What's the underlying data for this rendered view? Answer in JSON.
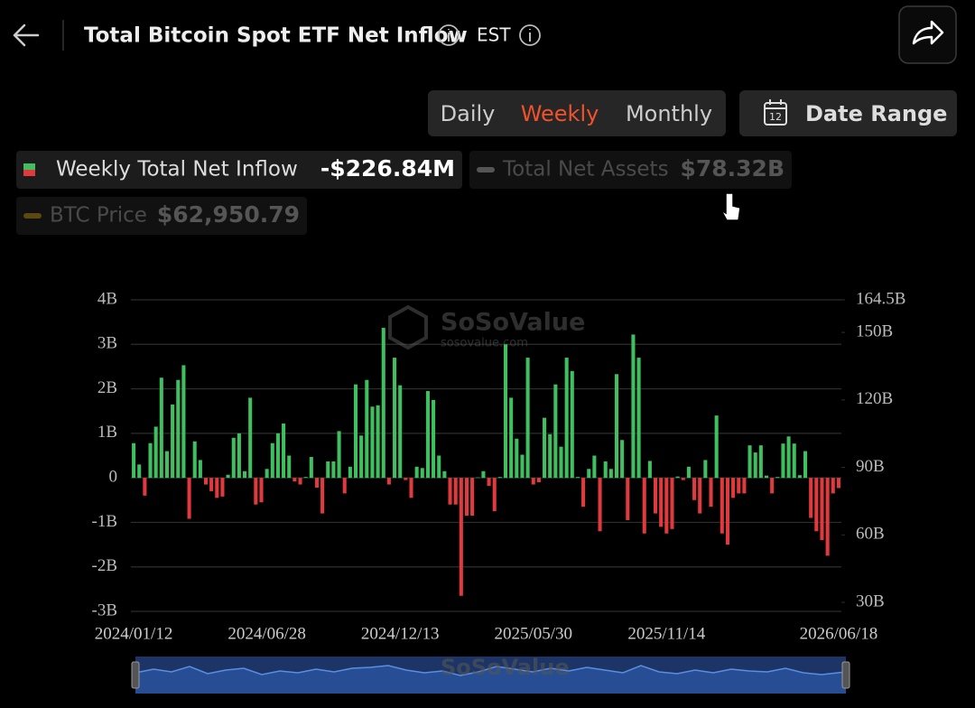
{
  "header": {
    "title": "Total Bitcoin Spot ETF Net Inflow",
    "timezone": "EST"
  },
  "tabs": [
    "Daily",
    "Weekly",
    "Monthly"
  ],
  "active_tab": 1,
  "date_range": {
    "label": "Date Range",
    "icon_day": "12"
  },
  "legend": [
    {
      "name": "Weekly Total Net Inflow",
      "value_label": "-$226.84M",
      "visible": true
    },
    {
      "name": "Total Net Assets",
      "value_label": "$78.32B",
      "visible": false
    },
    {
      "name": "BTC Price",
      "value_label": "$62,950.79",
      "visible": false
    }
  ],
  "watermark": {
    "brand": "SoSoValue",
    "url": "sosovalue.com"
  },
  "chart_data": {
    "type": "bar",
    "series": [
      {
        "name": "Weekly Total Net Inflow",
        "color": "#3fbf5f",
        "negative_color": "#e0393e",
        "values": [
          0.78,
          0.3,
          -0.4,
          0.78,
          1.15,
          2.25,
          0.6,
          1.65,
          2.2,
          2.53,
          -0.92,
          0.82,
          0.4,
          -0.15,
          -0.3,
          -0.45,
          -0.42,
          0.07,
          0.9,
          1.0,
          0.15,
          1.8,
          -0.6,
          -0.55,
          0.2,
          0.78,
          1.0,
          1.22,
          0.5,
          -0.08,
          -0.15,
          0.02,
          0.47,
          -0.22,
          -0.8,
          0.37,
          0.37,
          1.05,
          -0.35,
          0.25,
          2.1,
          0.95,
          2.2,
          1.6,
          1.63,
          3.37,
          -0.15,
          2.7,
          2.08,
          -0.05,
          -0.45,
          0.25,
          0.22,
          1.95,
          1.75,
          0.5,
          0.15,
          -0.6,
          -0.6,
          -2.65,
          -0.85,
          -0.85,
          0.01,
          0.15,
          -0.18,
          -0.75,
          0.02,
          3.0,
          1.8,
          0.88,
          0.52,
          2.7,
          -0.15,
          -0.1,
          1.35,
          0.98,
          2.1,
          0.7,
          2.7,
          2.4,
          0.02,
          -0.65,
          0.2,
          0.5,
          -1.2,
          0.37,
          0.2,
          2.33,
          0.85,
          -0.95,
          3.22,
          2.7,
          -1.25,
          0.38,
          -0.8,
          -1.1,
          -1.25,
          -1.15,
          0.03,
          -0.05,
          0.25,
          -0.5,
          -0.8,
          0.4,
          -0.65,
          1.4,
          -1.25,
          -1.5,
          -0.45,
          -0.35,
          -0.35,
          0.73,
          0.57,
          0.73,
          0.05,
          -0.35,
          0.02,
          0.77,
          0.93,
          0.77,
          0.06,
          0.6,
          -0.9,
          -1.2,
          -1.4,
          -1.75,
          -0.35,
          -0.23
        ]
      }
    ],
    "categories": [
      "2024/01/12",
      null,
      null,
      null,
      null,
      null,
      null,
      null,
      null,
      null,
      null,
      null,
      null,
      null,
      null,
      null,
      null,
      null,
      null,
      null,
      null,
      null,
      null,
      null,
      "2024/06/28",
      null,
      null,
      null,
      null,
      null,
      null,
      null,
      null,
      null,
      null,
      null,
      null,
      null,
      null,
      null,
      null,
      null,
      null,
      null,
      null,
      null,
      null,
      null,
      "2024/12/13",
      null,
      null,
      null,
      null,
      null,
      null,
      null,
      null,
      null,
      null,
      null,
      null,
      null,
      null,
      null,
      null,
      null,
      null,
      null,
      null,
      null,
      null,
      null,
      "2025/05/30",
      null,
      null,
      null,
      null,
      null,
      null,
      null,
      null,
      null,
      null,
      null,
      null,
      null,
      null,
      null,
      null,
      null,
      null,
      null,
      null,
      null,
      null,
      null,
      "2025/11/14",
      null,
      null,
      null,
      null,
      null,
      null,
      null,
      null,
      null,
      null,
      null,
      null,
      null,
      null,
      null,
      null,
      null,
      null,
      null,
      null,
      null,
      null,
      null,
      null,
      null,
      null,
      null,
      null,
      null,
      null,
      "2026/06/18"
    ],
    "ylim": [
      -3,
      4
    ],
    "yticks": [
      {
        "value": -3,
        "label": "-3B"
      },
      {
        "value": -2,
        "label": "-2B"
      },
      {
        "value": -1,
        "label": "-1B"
      },
      0,
      {
        "value": 1,
        "label": "1B"
      },
      {
        "value": 2,
        "label": "2B"
      },
      {
        "value": 3,
        "label": "3B"
      },
      {
        "value": 4,
        "label": "4B"
      }
    ],
    "y2lim": [
      26,
      164.5
    ],
    "y2ticks": [
      {
        "value": 30,
        "label": "30B"
      },
      {
        "value": 60,
        "label": "60B"
      },
      {
        "value": 90,
        "label": "90B"
      },
      {
        "value": 120,
        "label": "120B"
      },
      {
        "value": 150,
        "label": "150B"
      },
      {
        "value": 164.5,
        "label": "164.5B"
      }
    ],
    "grid": true
  }
}
